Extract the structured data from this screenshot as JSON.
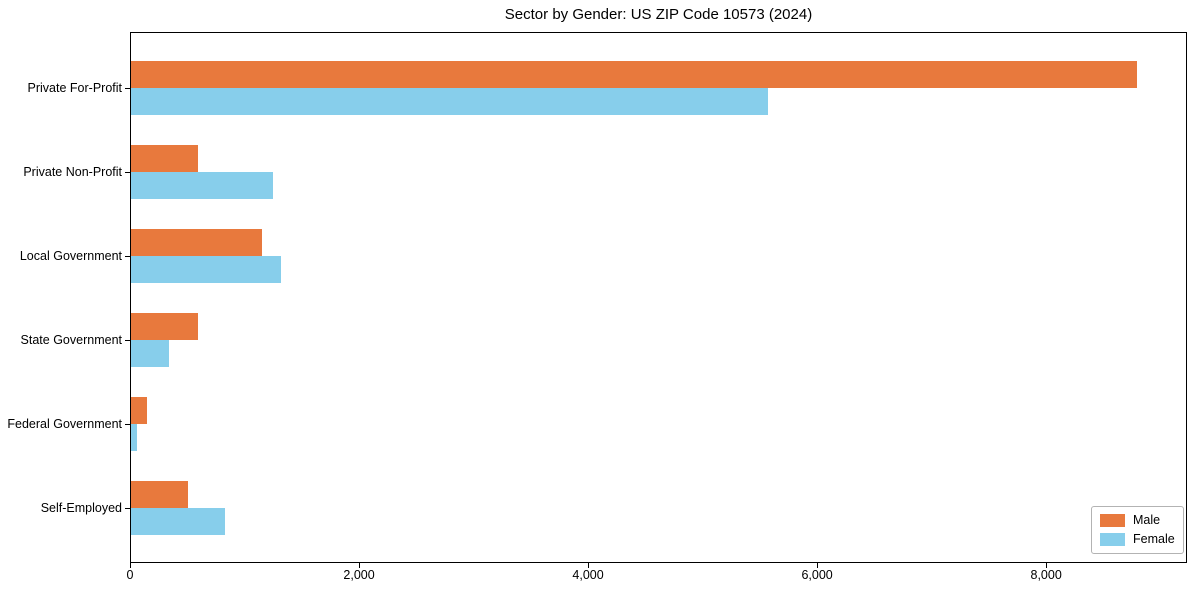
{
  "chart_data": {
    "type": "bar",
    "orientation": "horizontal",
    "title": "Sector by Gender: US ZIP Code 10573 (2024)",
    "categories": [
      "Private For-Profit",
      "Private Non-Profit",
      "Local Government",
      "State Government",
      "Federal Government",
      "Self-Employed"
    ],
    "series": [
      {
        "name": "Male",
        "color": "#E8793D",
        "values": [
          8790,
          590,
          1150,
          590,
          150,
          510
        ]
      },
      {
        "name": "Female",
        "color": "#87CEEB",
        "values": [
          5570,
          1250,
          1320,
          340,
          65,
          830
        ]
      }
    ],
    "xlabel": "",
    "ylabel": "",
    "xlim": [
      0,
      9230
    ],
    "xticks": [
      0,
      2000,
      4000,
      6000,
      8000
    ],
    "xtick_labels": [
      "0",
      "2,000",
      "4,000",
      "6,000",
      "8,000"
    ],
    "grid": false,
    "legend": {
      "position": "lower right",
      "entries": [
        "Male",
        "Female"
      ]
    }
  }
}
